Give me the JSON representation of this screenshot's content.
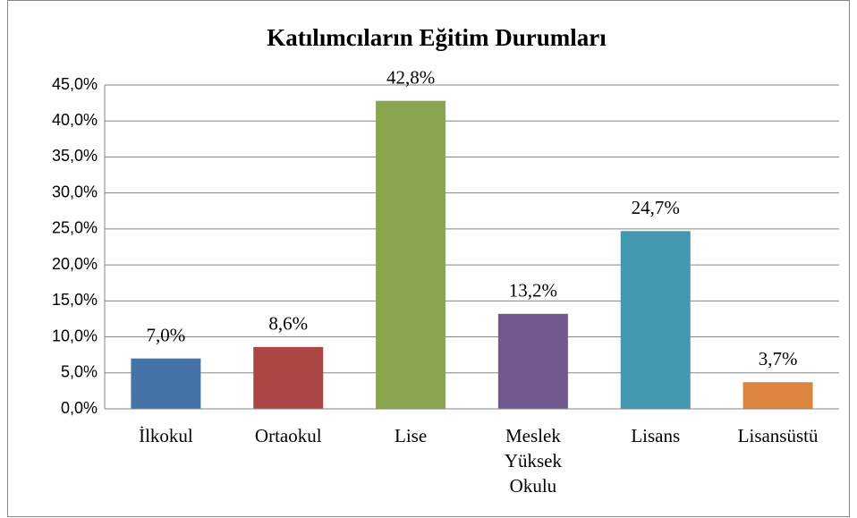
{
  "chart_data": {
    "type": "bar",
    "title": "Katılımcıların Eğitim Durumları",
    "categories": [
      "İlkokul",
      "Ortaokul",
      "Lise",
      "Meslek Yüksek Okulu",
      "Lisans",
      "Lisansüstü"
    ],
    "values": [
      7.0,
      8.6,
      42.8,
      13.2,
      24.7,
      3.7
    ],
    "value_labels": [
      "7,0%",
      "8,6%",
      "42,8%",
      "13,2%",
      "24,7%",
      "3,7%"
    ],
    "colors": [
      "#4572a7",
      "#aa4643",
      "#89a54e",
      "#71588f",
      "#4198af",
      "#db843d"
    ],
    "ylim": [
      0,
      45
    ],
    "yticks": [
      {
        "value": 0,
        "label": "0,0%"
      },
      {
        "value": 5,
        "label": "5,0%"
      },
      {
        "value": 10,
        "label": "10,0%"
      },
      {
        "value": 15,
        "label": "15,0%"
      },
      {
        "value": 20,
        "label": "20,0%"
      },
      {
        "value": 25,
        "label": "25,0%"
      },
      {
        "value": 30,
        "label": "30,0%"
      },
      {
        "value": 35,
        "label": "35,0%"
      },
      {
        "value": 40,
        "label": "40,0%"
      },
      {
        "value": 45,
        "label": "45,0%"
      }
    ],
    "grid": true
  }
}
